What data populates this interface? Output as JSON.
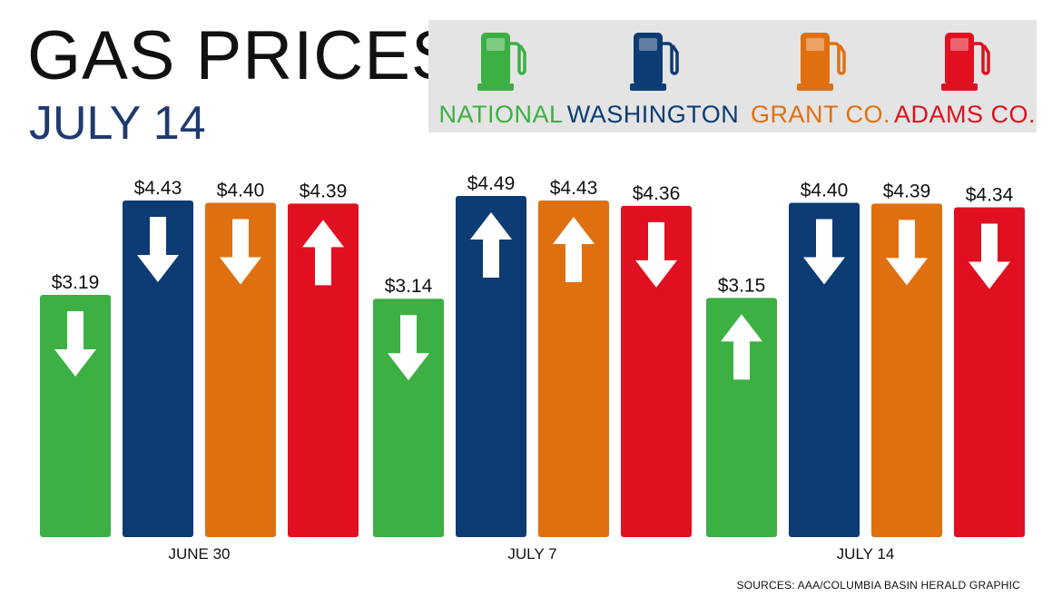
{
  "header": {
    "title": "GAS PRICES",
    "subtitle": "JULY 14"
  },
  "legend": [
    {
      "label": "NATIONAL",
      "color": "#3cb043",
      "icon": "gas-pump-icon"
    },
    {
      "label": "WASHINGTON",
      "color": "#0d3b73",
      "icon": "gas-pump-icon"
    },
    {
      "label": "GRANT CO.",
      "color": "#e0700f",
      "icon": "gas-pump-icon"
    },
    {
      "label": "ADAMS CO.",
      "color": "#e01020",
      "icon": "gas-pump-icon"
    }
  ],
  "chart_data": {
    "type": "bar",
    "categories": [
      "JUNE 30",
      "JULY 7",
      "JULY 14"
    ],
    "series": [
      {
        "name": "NATIONAL",
        "color": "#3cb043",
        "values": [
          3.19,
          3.14,
          3.15
        ],
        "labels": [
          "$3.19",
          "$3.14",
          "$3.15"
        ],
        "trend": [
          "down",
          "down",
          "up"
        ]
      },
      {
        "name": "WASHINGTON",
        "color": "#0d3b73",
        "values": [
          4.43,
          4.49,
          4.4
        ],
        "labels": [
          "$4.43",
          "$4.49",
          "$4.40"
        ],
        "trend": [
          "down",
          "up",
          "down"
        ]
      },
      {
        "name": "GRANT CO.",
        "color": "#e0700f",
        "values": [
          4.4,
          4.43,
          4.39
        ],
        "labels": [
          "$4.40",
          "$4.43",
          "$4.39"
        ],
        "trend": [
          "down",
          "up",
          "down"
        ]
      },
      {
        "name": "ADAMS CO.",
        "color": "#e01020",
        "values": [
          4.39,
          4.36,
          4.34
        ],
        "labels": [
          "$4.39",
          "$4.36",
          "$4.34"
        ],
        "trend": [
          "up",
          "down",
          "down"
        ]
      }
    ],
    "title": "GAS PRICES",
    "subtitle": "JULY 14",
    "grid": false,
    "legend_position": "top-right",
    "ylim": [
      0,
      5.5
    ]
  },
  "footer": {
    "source": "SOURCES: AAA/COLUMBIA BASIN HERALD GRAPHIC"
  }
}
